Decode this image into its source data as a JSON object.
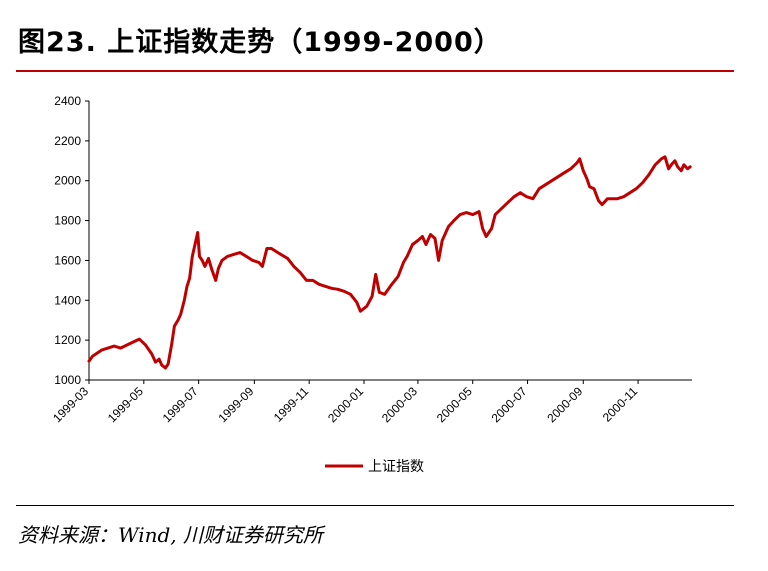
{
  "figure": {
    "title": "图23. 上证指数走势（1999-2000）",
    "source": "资料来源：Wind, 川财证券研究所"
  },
  "colors": {
    "series": "#c00000",
    "header_rule": "#c00000"
  },
  "chart_data": {
    "type": "line",
    "title": "",
    "xlabel": "",
    "ylabel": "",
    "ylim": [
      1000,
      2400
    ],
    "yticks": [
      "1000",
      "1200",
      "1400",
      "1600",
      "1800",
      "2000",
      "2200",
      "2400"
    ],
    "xlim": [
      "1999-03-01",
      "2000-12-31"
    ],
    "xticks": [
      "1999-03",
      "1999-05",
      "1999-07",
      "1999-09",
      "1999-11",
      "2000-01",
      "2000-03",
      "2000-05",
      "2000-07",
      "2000-09",
      "2000-11"
    ],
    "grid": false,
    "legend": "bottom-center",
    "series": [
      {
        "name": "上证指数",
        "points": [
          [
            "1999-03-01",
            1095
          ],
          [
            "1999-03-05",
            1120
          ],
          [
            "1999-03-10",
            1135
          ],
          [
            "1999-03-15",
            1150
          ],
          [
            "1999-03-22",
            1160
          ],
          [
            "1999-03-29",
            1170
          ],
          [
            "1999-04-05",
            1160
          ],
          [
            "1999-04-12",
            1175
          ],
          [
            "1999-04-19",
            1190
          ],
          [
            "1999-04-26",
            1205
          ],
          [
            "1999-05-03",
            1175
          ],
          [
            "1999-05-10",
            1130
          ],
          [
            "1999-05-14",
            1090
          ],
          [
            "1999-05-18",
            1105
          ],
          [
            "1999-05-21",
            1075
          ],
          [
            "1999-05-25",
            1060
          ],
          [
            "1999-05-28",
            1080
          ],
          [
            "1999-06-01",
            1180
          ],
          [
            "1999-06-04",
            1270
          ],
          [
            "1999-06-08",
            1300
          ],
          [
            "1999-06-11",
            1330
          ],
          [
            "1999-06-15",
            1400
          ],
          [
            "1999-06-18",
            1470
          ],
          [
            "1999-06-21",
            1510
          ],
          [
            "1999-06-24",
            1620
          ],
          [
            "1999-06-28",
            1700
          ],
          [
            "1999-06-30",
            1740
          ],
          [
            "1999-07-02",
            1620
          ],
          [
            "1999-07-05",
            1600
          ],
          [
            "1999-07-08",
            1570
          ],
          [
            "1999-07-12",
            1610
          ],
          [
            "1999-07-16",
            1550
          ],
          [
            "1999-07-20",
            1500
          ],
          [
            "1999-07-23",
            1560
          ],
          [
            "1999-07-27",
            1600
          ],
          [
            "1999-08-02",
            1620
          ],
          [
            "1999-08-09",
            1630
          ],
          [
            "1999-08-16",
            1640
          ],
          [
            "1999-08-23",
            1620
          ],
          [
            "1999-08-30",
            1600
          ],
          [
            "1999-09-06",
            1590
          ],
          [
            "1999-09-10",
            1570
          ],
          [
            "1999-09-15",
            1660
          ],
          [
            "1999-09-20",
            1660
          ],
          [
            "1999-09-27",
            1640
          ],
          [
            "1999-10-08",
            1610
          ],
          [
            "1999-10-15",
            1570
          ],
          [
            "1999-10-22",
            1540
          ],
          [
            "1999-10-29",
            1500
          ],
          [
            "1999-11-05",
            1500
          ],
          [
            "1999-11-12",
            1480
          ],
          [
            "1999-11-19",
            1470
          ],
          [
            "1999-11-26",
            1460
          ],
          [
            "1999-12-03",
            1455
          ],
          [
            "1999-12-10",
            1445
          ],
          [
            "1999-12-17",
            1430
          ],
          [
            "1999-12-24",
            1390
          ],
          [
            "1999-12-28",
            1345
          ],
          [
            "2000-01-04",
            1370
          ],
          [
            "2000-01-10",
            1420
          ],
          [
            "2000-01-14",
            1530
          ],
          [
            "2000-01-18",
            1440
          ],
          [
            "2000-01-24",
            1430
          ],
          [
            "2000-02-01",
            1480
          ],
          [
            "2000-02-08",
            1520
          ],
          [
            "2000-02-14",
            1590
          ],
          [
            "2000-02-18",
            1620
          ],
          [
            "2000-02-24",
            1680
          ],
          [
            "2000-03-01",
            1700
          ],
          [
            "2000-03-06",
            1720
          ],
          [
            "2000-03-10",
            1680
          ],
          [
            "2000-03-15",
            1730
          ],
          [
            "2000-03-20",
            1710
          ],
          [
            "2000-03-24",
            1600
          ],
          [
            "2000-03-28",
            1700
          ],
          [
            "2000-04-04",
            1770
          ],
          [
            "2000-04-10",
            1800
          ],
          [
            "2000-04-17",
            1830
          ],
          [
            "2000-04-24",
            1840
          ],
          [
            "2000-05-01",
            1830
          ],
          [
            "2000-05-08",
            1845
          ],
          [
            "2000-05-12",
            1760
          ],
          [
            "2000-05-16",
            1720
          ],
          [
            "2000-05-22",
            1760
          ],
          [
            "2000-05-26",
            1830
          ],
          [
            "2000-06-02",
            1860
          ],
          [
            "2000-06-09",
            1890
          ],
          [
            "2000-06-16",
            1920
          ],
          [
            "2000-06-23",
            1940
          ],
          [
            "2000-06-30",
            1920
          ],
          [
            "2000-07-07",
            1910
          ],
          [
            "2000-07-14",
            1960
          ],
          [
            "2000-07-21",
            1980
          ],
          [
            "2000-07-28",
            2000
          ],
          [
            "2000-08-04",
            2020
          ],
          [
            "2000-08-11",
            2040
          ],
          [
            "2000-08-18",
            2060
          ],
          [
            "2000-08-25",
            2090
          ],
          [
            "2000-08-28",
            2110
          ],
          [
            "2000-09-01",
            2050
          ],
          [
            "2000-09-05",
            2010
          ],
          [
            "2000-09-08",
            1970
          ],
          [
            "2000-09-13",
            1960
          ],
          [
            "2000-09-18",
            1900
          ],
          [
            "2000-09-22",
            1880
          ],
          [
            "2000-09-28",
            1910
          ],
          [
            "2000-10-09",
            1910
          ],
          [
            "2000-10-16",
            1920
          ],
          [
            "2000-10-23",
            1940
          ],
          [
            "2000-10-30",
            1960
          ],
          [
            "2000-11-06",
            1990
          ],
          [
            "2000-11-13",
            2030
          ],
          [
            "2000-11-20",
            2080
          ],
          [
            "2000-11-27",
            2110
          ],
          [
            "2000-12-01",
            2120
          ],
          [
            "2000-12-05",
            2060
          ],
          [
            "2000-12-08",
            2080
          ],
          [
            "2000-12-12",
            2100
          ],
          [
            "2000-12-15",
            2070
          ],
          [
            "2000-12-19",
            2050
          ],
          [
            "2000-12-22",
            2080
          ],
          [
            "2000-12-26",
            2060
          ],
          [
            "2000-12-29",
            2070
          ]
        ]
      }
    ]
  }
}
